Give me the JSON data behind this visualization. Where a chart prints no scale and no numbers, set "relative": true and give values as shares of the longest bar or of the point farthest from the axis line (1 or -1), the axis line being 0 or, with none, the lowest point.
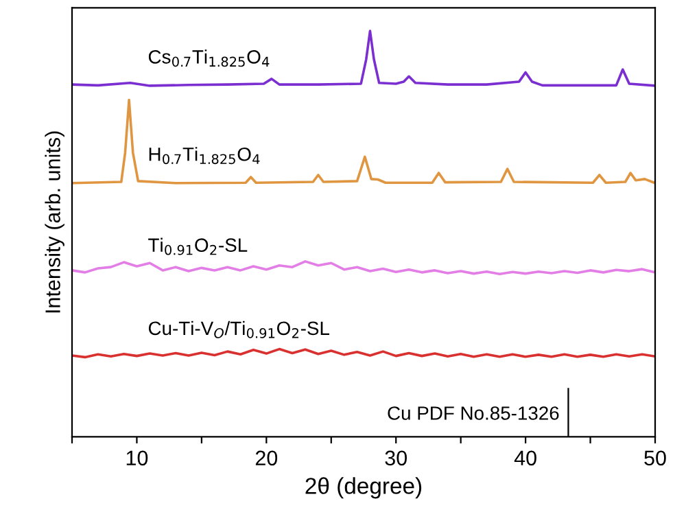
{
  "chart_data": {
    "type": "line",
    "xlabel": "2θ (degree)",
    "ylabel": "Intensity (arb. units)",
    "relative": true,
    "tick_labels": "x",
    "xlim": [
      5,
      50
    ],
    "xticks": [
      {
        "value": 5,
        "label": null
      },
      10,
      {
        "value": 15,
        "label": null
      },
      20,
      {
        "value": 25,
        "label": null
      },
      30,
      {
        "value": 35,
        "label": null
      },
      40,
      {
        "value": 45,
        "label": null
      },
      50
    ],
    "series": [
      {
        "name": "Cs$_{0.7}$Ti$_{1.825}$O$_{4}$",
        "color": "#7b2fd0",
        "x": [
          5,
          7,
          9.5,
          11,
          14,
          17,
          19.8,
          20.4,
          21,
          24,
          27.3,
          27.7,
          28.0,
          28.3,
          28.7,
          30,
          30.6,
          31.0,
          31.5,
          34,
          37,
          39.5,
          40.0,
          40.5,
          41.3,
          44,
          47.0,
          47.5,
          48.0,
          50
        ],
        "values": [
          0.868,
          0.866,
          0.872,
          0.865,
          0.867,
          0.868,
          0.87,
          0.882,
          0.868,
          0.868,
          0.87,
          0.93,
          1.0,
          0.93,
          0.872,
          0.87,
          0.875,
          0.888,
          0.872,
          0.868,
          0.868,
          0.875,
          0.898,
          0.875,
          0.866,
          0.866,
          0.866,
          0.905,
          0.87,
          0.865
        ]
      },
      {
        "name": "H$_{0.7}$Ti$_{1.825}$O$_{4}$",
        "color": "#e09640",
        "x": [
          5,
          8.8,
          9.1,
          9.4,
          9.7,
          10.1,
          13,
          18.4,
          18.8,
          19.2,
          23.6,
          24.0,
          24.4,
          27.0,
          27.6,
          28.1,
          28.6,
          29.2,
          32.8,
          33.3,
          33.8,
          38.1,
          38.6,
          39.1,
          45.2,
          45.7,
          46.2,
          47.7,
          48.1,
          48.5,
          49.2,
          50
        ],
        "values": [
          0.625,
          0.628,
          0.7,
          0.83,
          0.7,
          0.63,
          0.625,
          0.626,
          0.64,
          0.626,
          0.628,
          0.645,
          0.628,
          0.63,
          0.69,
          0.635,
          0.634,
          0.626,
          0.626,
          0.65,
          0.627,
          0.628,
          0.66,
          0.628,
          0.626,
          0.645,
          0.626,
          0.628,
          0.65,
          0.632,
          0.635,
          0.625
        ]
      },
      {
        "name": "Ti$_{0.91}$O$_{2}$-SL",
        "color": "#e27ee6",
        "x": [
          5,
          6,
          7,
          8,
          9,
          10,
          11,
          12,
          13,
          14,
          15,
          16,
          17,
          18,
          19,
          20,
          21,
          22,
          23,
          24,
          25,
          26,
          27,
          28,
          29,
          30,
          31,
          32,
          33,
          34,
          35,
          36,
          37,
          38,
          39,
          40,
          41,
          42,
          43,
          44,
          45,
          46,
          47,
          48,
          49,
          50
        ],
        "values": [
          0.41,
          0.405,
          0.415,
          0.418,
          0.43,
          0.42,
          0.428,
          0.41,
          0.418,
          0.408,
          0.416,
          0.41,
          0.418,
          0.41,
          0.42,
          0.412,
          0.422,
          0.418,
          0.432,
          0.422,
          0.428,
          0.412,
          0.418,
          0.408,
          0.414,
          0.406,
          0.412,
          0.405,
          0.41,
          0.403,
          0.408,
          0.402,
          0.407,
          0.401,
          0.406,
          0.402,
          0.407,
          0.403,
          0.408,
          0.404,
          0.41,
          0.405,
          0.411,
          0.408,
          0.413,
          0.405
        ]
      },
      {
        "name": "Cu-Ti-V$_{O}$/Ti$_{0.91}$O$_{2}$-SL",
        "color": "#d93030",
        "x": [
          5,
          6,
          7,
          8,
          9,
          10,
          11,
          12,
          13,
          14,
          15,
          16,
          17,
          18,
          19,
          20,
          21,
          22,
          23,
          24,
          25,
          26,
          27,
          28,
          29,
          30,
          31,
          32,
          33,
          34,
          35,
          36,
          37,
          38,
          39,
          40,
          41,
          42,
          43,
          44,
          45,
          46,
          47,
          48,
          49,
          50
        ],
        "values": [
          0.2,
          0.196,
          0.203,
          0.198,
          0.204,
          0.199,
          0.205,
          0.2,
          0.206,
          0.2,
          0.207,
          0.201,
          0.21,
          0.203,
          0.214,
          0.205,
          0.216,
          0.206,
          0.215,
          0.204,
          0.212,
          0.202,
          0.209,
          0.2,
          0.21,
          0.199,
          0.206,
          0.199,
          0.205,
          0.198,
          0.204,
          0.197,
          0.203,
          0.197,
          0.203,
          0.197,
          0.202,
          0.197,
          0.203,
          0.197,
          0.202,
          0.197,
          0.203,
          0.198,
          0.203,
          0.198
        ]
      },
      {
        "name": "Cu PDF No.85-1326",
        "type": "bar",
        "color": "#000000",
        "x": [
          43.3
        ],
        "values": [
          0.12
        ]
      }
    ]
  }
}
